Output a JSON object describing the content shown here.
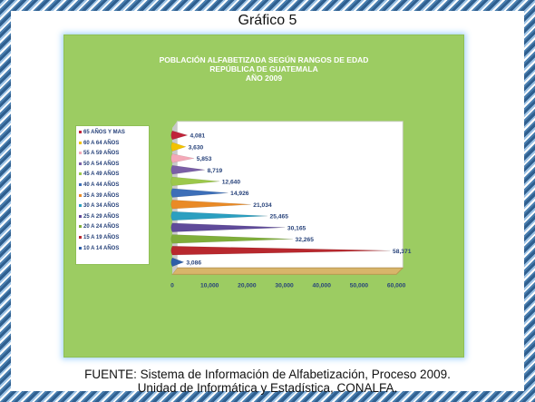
{
  "slide_title": "Gráfico 5",
  "chart_data": {
    "type": "bar",
    "orientation": "horizontal",
    "title_lines": [
      "POBLACIÓN ALFABETIZADA SEGÚN RANGOS DE EDAD",
      "REPÚBLICA DE GUATEMALA",
      "AÑO 2009"
    ],
    "categories": [
      "10 A 14 AÑOS",
      "15 A 19 AÑOS",
      "20 A 24 AÑOS",
      "25 A 29 AÑOS",
      "30 A 34 AÑOS",
      "35 A 39 AÑOS",
      "40 A 44 AÑOS",
      "45 A 49 AÑOS",
      "50 A 54 AÑOS",
      "55 A 59 AÑOS",
      "60 A 64 AÑOS",
      "65 AÑOS Y MAS"
    ],
    "values": [
      3086,
      58371,
      32265,
      30165,
      25465,
      21034,
      14926,
      12640,
      8719,
      5853,
      3630,
      4081
    ],
    "value_labels": [
      "3,086",
      "58,371",
      "32,265",
      "30,165",
      "25,465",
      "21,034",
      "14,926",
      "12,640",
      "8,719",
      "5,853",
      "3,630",
      "4,081"
    ],
    "colors": [
      "#2e5fa8",
      "#b8282e",
      "#7fae3a",
      "#5f4a9a",
      "#2b9fc0",
      "#e98a26",
      "#3d6fb8",
      "#9cc84b",
      "#7a5fa6",
      "#f4a9b8",
      "#f2c200",
      "#c0243a"
    ],
    "legend_order": [
      "65 AÑOS Y MAS",
      "60 A 64 AÑOS",
      "55 A 59 AÑOS",
      "50 A 54 AÑOS",
      "45 A 49 AÑOS",
      "40 A 44 AÑOS",
      "35 A 39 AÑOS",
      "30 A 34 AÑOS",
      "25 A 29 AÑOS",
      "20 A 24 AÑOS",
      "15 A 19 AÑOS",
      "10 A 14 AÑOS"
    ],
    "x_ticks": [
      "0",
      "10,000",
      "20,000",
      "30,000",
      "40,000",
      "50,000",
      "60,000"
    ],
    "xlim": [
      0,
      60000
    ],
    "legend_position": "left",
    "grid": false
  },
  "footer": {
    "line1": "FUENTE:   Sistema de Información de Alfabetización, Proceso 2009.",
    "line2": "Unidad de Informática y Estadística, CONALFA."
  }
}
